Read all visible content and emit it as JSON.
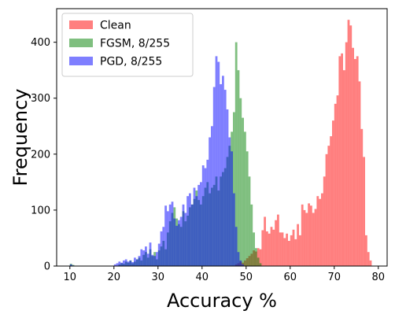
{
  "chart_data": {
    "type": "bar",
    "subtype": "overlaid-histogram",
    "xlabel": "Accuracy %",
    "ylabel": "Frequency",
    "xlim": [
      7,
      82
    ],
    "ylim": [
      0,
      460
    ],
    "xticks": [
      10,
      20,
      30,
      40,
      50,
      60,
      70,
      80
    ],
    "yticks": [
      0,
      100,
      200,
      300,
      400
    ],
    "grid": false,
    "legend_position": "top-left",
    "bin_width": 0.5,
    "series": [
      {
        "name": "Clean",
        "color": "#ff0000",
        "opacity": 0.5,
        "bins": [
          [
            47.5,
            3
          ],
          [
            48.0,
            5
          ],
          [
            48.5,
            8
          ],
          [
            49.0,
            6
          ],
          [
            49.5,
            10
          ],
          [
            50.0,
            14
          ],
          [
            50.5,
            18
          ],
          [
            51.0,
            22
          ],
          [
            51.5,
            28
          ],
          [
            52.0,
            26
          ],
          [
            52.5,
            32
          ],
          [
            53.0,
            30
          ],
          [
            53.5,
            64
          ],
          [
            54.0,
            88
          ],
          [
            54.5,
            62
          ],
          [
            55.0,
            58
          ],
          [
            55.5,
            70
          ],
          [
            56.0,
            65
          ],
          [
            56.5,
            82
          ],
          [
            57.0,
            92
          ],
          [
            57.5,
            60
          ],
          [
            58.0,
            60
          ],
          [
            58.5,
            50
          ],
          [
            59.0,
            58
          ],
          [
            59.5,
            45
          ],
          [
            60.0,
            55
          ],
          [
            60.5,
            65
          ],
          [
            61.0,
            48
          ],
          [
            61.5,
            75
          ],
          [
            62.0,
            55
          ],
          [
            62.5,
            110
          ],
          [
            63.0,
            100
          ],
          [
            63.5,
            95
          ],
          [
            64.0,
            112
          ],
          [
            64.5,
            108
          ],
          [
            65.0,
            95
          ],
          [
            65.5,
            102
          ],
          [
            66.0,
            125
          ],
          [
            66.5,
            120
          ],
          [
            67.0,
            130
          ],
          [
            67.5,
            160
          ],
          [
            68.0,
            200
          ],
          [
            68.5,
            215
          ],
          [
            69.0,
            232
          ],
          [
            69.5,
            260
          ],
          [
            70.0,
            290
          ],
          [
            70.5,
            305
          ],
          [
            71.0,
            375
          ],
          [
            71.5,
            380
          ],
          [
            72.0,
            350
          ],
          [
            72.5,
            400
          ],
          [
            73.0,
            440
          ],
          [
            73.5,
            430
          ],
          [
            74.0,
            390
          ],
          [
            74.5,
            370
          ],
          [
            75.0,
            375
          ],
          [
            75.5,
            330
          ],
          [
            76.0,
            245
          ],
          [
            76.5,
            195
          ],
          [
            77.0,
            55
          ],
          [
            77.5,
            25
          ],
          [
            78.0,
            10
          ]
        ]
      },
      {
        "name": "FGSM, 8/255",
        "color": "#008000",
        "opacity": 0.5,
        "bins": [
          [
            10.0,
            4
          ],
          [
            10.5,
            2
          ],
          [
            21.0,
            3
          ],
          [
            21.5,
            5
          ],
          [
            22.0,
            4
          ],
          [
            22.5,
            8
          ],
          [
            23.0,
            6
          ],
          [
            23.5,
            10
          ],
          [
            24.0,
            5
          ],
          [
            24.5,
            8
          ],
          [
            25.0,
            12
          ],
          [
            25.5,
            15
          ],
          [
            26.0,
            10
          ],
          [
            26.5,
            20
          ],
          [
            27.0,
            25
          ],
          [
            27.5,
            15
          ],
          [
            28.0,
            30
          ],
          [
            28.5,
            18
          ],
          [
            29.0,
            25
          ],
          [
            29.5,
            12
          ],
          [
            30.0,
            28
          ],
          [
            30.5,
            35
          ],
          [
            31.0,
            45
          ],
          [
            31.5,
            30
          ],
          [
            32.0,
            60
          ],
          [
            32.5,
            80
          ],
          [
            33.0,
            95
          ],
          [
            33.5,
            105
          ],
          [
            34.0,
            85
          ],
          [
            34.5,
            75
          ],
          [
            35.0,
            70
          ],
          [
            35.5,
            98
          ],
          [
            36.0,
            80
          ],
          [
            36.5,
            90
          ],
          [
            37.0,
            105
          ],
          [
            37.5,
            110
          ],
          [
            38.0,
            120
          ],
          [
            38.5,
            135
          ],
          [
            39.0,
            118
          ],
          [
            39.5,
            110
          ],
          [
            40.0,
            125
          ],
          [
            40.5,
            140
          ],
          [
            41.0,
            150
          ],
          [
            41.5,
            130
          ],
          [
            42.0,
            140
          ],
          [
            42.5,
            145
          ],
          [
            43.0,
            160
          ],
          [
            43.5,
            135
          ],
          [
            44.0,
            160
          ],
          [
            44.5,
            168
          ],
          [
            45.0,
            175
          ],
          [
            45.5,
            195
          ],
          [
            46.0,
            215
          ],
          [
            46.5,
            240
          ],
          [
            47.0,
            275
          ],
          [
            47.5,
            400
          ],
          [
            48.0,
            350
          ],
          [
            48.5,
            300
          ],
          [
            49.0,
            265
          ],
          [
            49.5,
            240
          ],
          [
            50.0,
            205
          ],
          [
            50.5,
            160
          ],
          [
            51.0,
            110
          ],
          [
            51.5,
            60
          ],
          [
            52.0,
            32
          ],
          [
            52.5,
            15
          ],
          [
            53.0,
            5
          ]
        ]
      },
      {
        "name": "PGD, 8/255",
        "color": "#0000ff",
        "opacity": 0.5,
        "bins": [
          [
            10.0,
            3
          ],
          [
            10.5,
            1
          ],
          [
            20.0,
            3
          ],
          [
            20.5,
            5
          ],
          [
            21.0,
            8
          ],
          [
            21.5,
            6
          ],
          [
            22.0,
            10
          ],
          [
            22.5,
            12
          ],
          [
            23.0,
            8
          ],
          [
            23.5,
            10
          ],
          [
            24.0,
            7
          ],
          [
            24.5,
            15
          ],
          [
            25.0,
            12
          ],
          [
            25.5,
            18
          ],
          [
            26.0,
            30
          ],
          [
            26.5,
            28
          ],
          [
            27.0,
            35
          ],
          [
            27.5,
            22
          ],
          [
            28.0,
            42
          ],
          [
            28.5,
            20
          ],
          [
            29.0,
            18
          ],
          [
            29.5,
            25
          ],
          [
            30.0,
            40
          ],
          [
            30.5,
            62
          ],
          [
            31.0,
            70
          ],
          [
            31.5,
            108
          ],
          [
            32.0,
            98
          ],
          [
            32.5,
            110
          ],
          [
            33.0,
            115
          ],
          [
            33.5,
            85
          ],
          [
            34.0,
            72
          ],
          [
            34.5,
            82
          ],
          [
            35.0,
            88
          ],
          [
            35.5,
            110
          ],
          [
            36.0,
            95
          ],
          [
            36.5,
            125
          ],
          [
            37.0,
            130
          ],
          [
            37.5,
            110
          ],
          [
            38.0,
            140
          ],
          [
            38.5,
            125
          ],
          [
            39.0,
            145
          ],
          [
            39.5,
            150
          ],
          [
            40.0,
            180
          ],
          [
            40.5,
            175
          ],
          [
            41.0,
            190
          ],
          [
            41.5,
            230
          ],
          [
            42.0,
            250
          ],
          [
            42.5,
            320
          ],
          [
            43.0,
            375
          ],
          [
            43.5,
            365
          ],
          [
            44.0,
            325
          ],
          [
            44.5,
            340
          ],
          [
            45.0,
            315
          ],
          [
            45.5,
            280
          ],
          [
            46.0,
            230
          ],
          [
            46.5,
            205
          ],
          [
            47.0,
            130
          ],
          [
            47.5,
            70
          ],
          [
            48.0,
            25
          ],
          [
            48.5,
            10
          ],
          [
            49.0,
            3
          ]
        ]
      }
    ]
  }
}
